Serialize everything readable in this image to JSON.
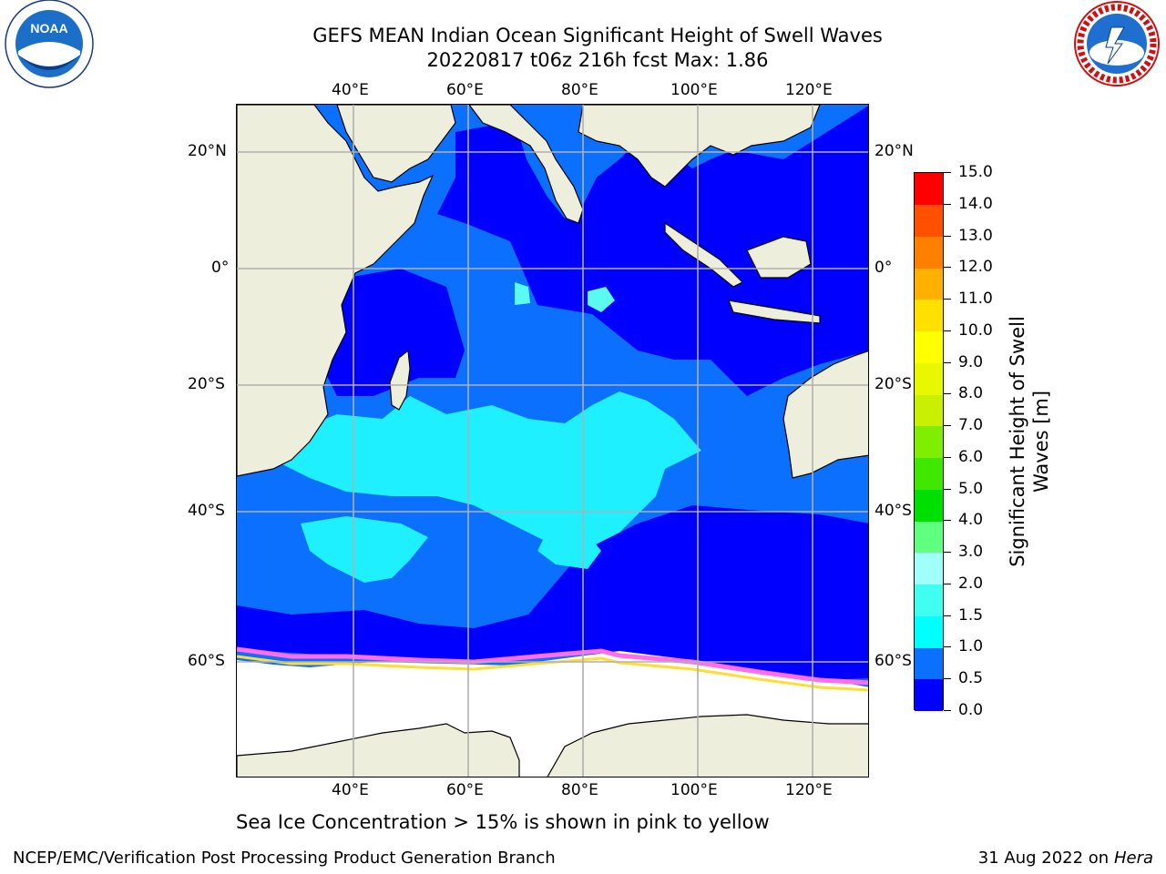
{
  "header": {
    "title_line1": "GEFS MEAN Indian Ocean Significant Height of Swell Waves",
    "title_line2": "20220817 t06z 216h fcst   Max: 1.86"
  },
  "logos": {
    "left": {
      "icon": "noaa-logo",
      "text": "NOAA"
    },
    "right": {
      "icon": "national-weather-service-logo",
      "text": "NATIONAL WEATHER SERVICE"
    }
  },
  "map": {
    "lon_labels_top": [
      "40°E",
      "60°E",
      "80°E",
      "100°E",
      "120°E"
    ],
    "lon_labels_bottom": [
      "40°E",
      "60°E",
      "80°E",
      "100°E",
      "120°E"
    ],
    "lat_labels_left": [
      "20°N",
      "0°",
      "20°S",
      "40°S",
      "60°S"
    ],
    "lat_labels_right": [
      "20°N",
      "0°",
      "20°S",
      "40°S",
      "60°S"
    ],
    "colors": {
      "land": "#eeeedd",
      "ocean_0_0p5": "#0000ff",
      "ocean_0p5_1": "#0c70ff",
      "ocean_1_1p5": "#1ef0ff",
      "ocean_1p5_2": "#5afaf0",
      "ice_pink": "#ff6ee6",
      "ice_yellow": "#ffdd33",
      "ice_white": "#ffffff",
      "grid": "#b0b0b0"
    }
  },
  "colorbar": {
    "title": "Significant Height of Swell Waves [m]",
    "title_line1": "Significant Height of Swell",
    "title_line2": "Waves [m]",
    "labels": [
      "0.0",
      "0.5",
      "1.0",
      "1.5",
      "2.0",
      "3.0",
      "4.0",
      "5.0",
      "6.0",
      "7.0",
      "8.0",
      "9.0",
      "10.0",
      "11.0",
      "12.0",
      "13.0",
      "14.0",
      "15.0"
    ],
    "colors": [
      "#0000ff",
      "#0c70ff",
      "#00ffff",
      "#40fff0",
      "#a0fff8",
      "#60ff80",
      "#00e000",
      "#40e800",
      "#80ee00",
      "#c8f000",
      "#e8f800",
      "#ffff00",
      "#ffe000",
      "#ffb000",
      "#ff8000",
      "#ff5000",
      "#ff0000"
    ]
  },
  "caption": "Sea Ice Concentration > 15% is shown in pink to yellow",
  "footer": {
    "left": "NCEP/EMC/Verification Post Processing Product Generation Branch",
    "right_date": "31 Aug 2022 on",
    "right_host": "Hera"
  }
}
